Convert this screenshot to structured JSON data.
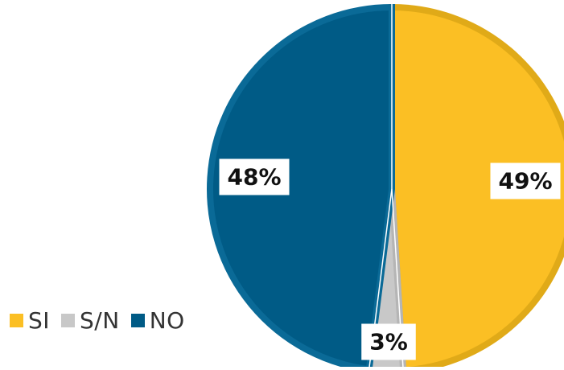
{
  "chart_data": {
    "type": "pie",
    "slices": [
      {
        "name": "SI",
        "value": 49,
        "label": "49%",
        "color": "#fbbf24",
        "border": "#e0aa18"
      },
      {
        "name": "S/N",
        "value": 3,
        "label": "3%",
        "color": "#c8c8c8",
        "border": "#b5b5b5"
      },
      {
        "name": "NO",
        "value": 48,
        "label": "48%",
        "color": "#005b86",
        "border": "#0a6a97"
      }
    ],
    "start_angle": "12 o'clock",
    "direction": "clockwise",
    "legend_position": "bottom-left"
  },
  "legend": {
    "items": [
      {
        "label": "SI",
        "color": "#fbbf24"
      },
      {
        "label": "S/N",
        "color": "#c8c8c8"
      },
      {
        "label": "NO",
        "color": "#005b86"
      }
    ]
  }
}
